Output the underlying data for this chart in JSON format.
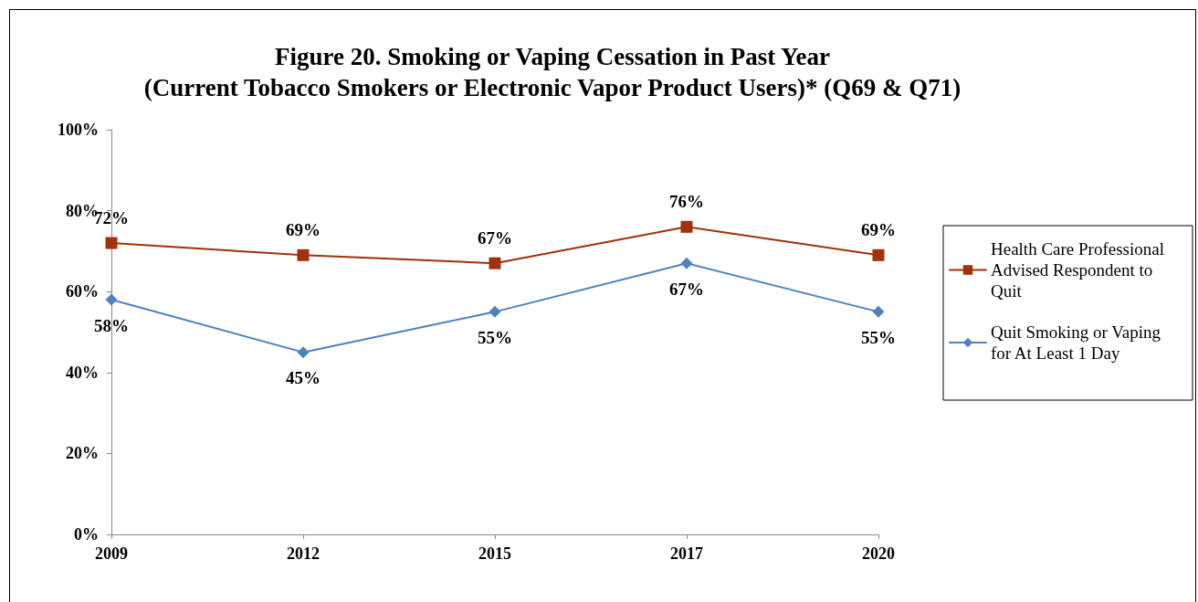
{
  "chart_data": {
    "type": "line",
    "title": "Figure 20. Smoking or Vaping Cessation in Past Year\n(Current Tobacco Smokers or Electronic Vapor Product Users)* (Q69 & Q71)",
    "categories": [
      "2009",
      "2012",
      "2015",
      "2017",
      "2020"
    ],
    "series": [
      {
        "name": "Health Care Professional Advised Respondent to Quit",
        "color": "#a0320c",
        "marker": "square",
        "values": [
          72,
          69,
          67,
          76,
          69
        ],
        "value_labels": [
          "72%",
          "69%",
          "67%",
          "76%",
          "69%"
        ]
      },
      {
        "name": "Quit Smoking or Vaping for At Least 1 Day",
        "color": "#4f81bd",
        "marker": "diamond",
        "values": [
          58,
          45,
          55,
          67,
          55
        ],
        "value_labels": [
          "58%",
          "45%",
          "55%",
          "67%",
          "55%"
        ]
      }
    ],
    "ylim": [
      0,
      100
    ],
    "yticks": [
      {
        "value": 0,
        "label": "0%"
      },
      {
        "value": 20,
        "label": "20%"
      },
      {
        "value": 40,
        "label": "40%"
      },
      {
        "value": 60,
        "label": "60%"
      },
      {
        "value": 80,
        "label": "80%"
      },
      {
        "value": 100,
        "label": "100%"
      }
    ],
    "grid": false,
    "legend": "right",
    "line_style": "solid"
  }
}
